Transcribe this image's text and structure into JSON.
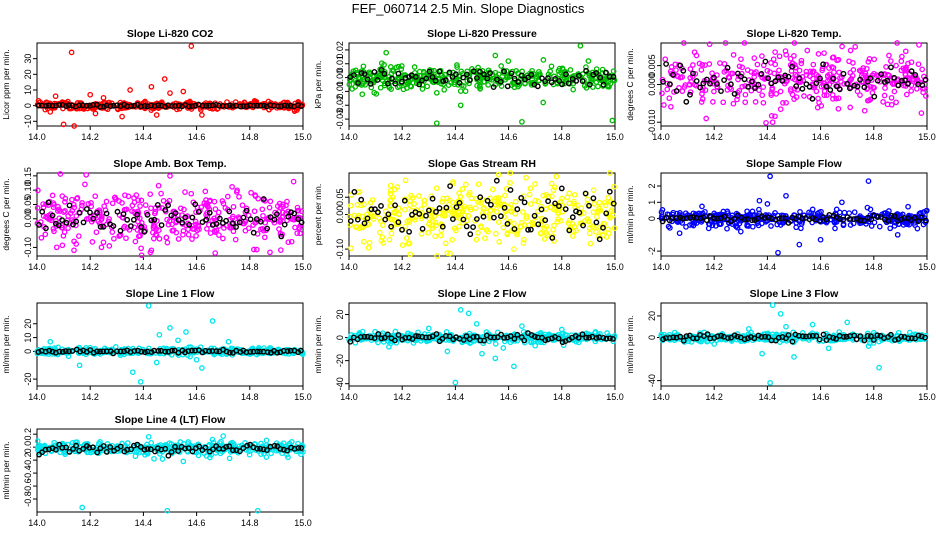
{
  "title": "FEF_060714  2.5 Min. Slope Diagnostics",
  "chart_data": [
    {
      "type": "scatter",
      "title": "Slope Li-820 CO2",
      "ylabel": "Licor ppm per min.",
      "xlim": [
        14.0,
        15.0
      ],
      "ylim": [
        -13,
        40
      ],
      "xticks": [
        "14.0",
        "14.2",
        "14.4",
        "14.6",
        "14.8",
        "15.0"
      ],
      "yticks": [
        {
          "v": -10,
          "label": "-10"
        },
        {
          "v": 0,
          "label": "0"
        },
        {
          "v": 10,
          "label": "10"
        },
        {
          "v": 20,
          "label": "20"
        },
        {
          "v": 30,
          "label": "30"
        }
      ],
      "colors": {
        "raw": "#ff0000",
        "mean": "#000000"
      },
      "series_params": {
        "center": 0,
        "spread": 1.2,
        "mean_spread": 0.3
      },
      "outliers": [
        [
          14.13,
          34
        ],
        [
          14.58,
          38
        ],
        [
          14.2,
          7
        ],
        [
          14.35,
          10
        ],
        [
          14.5,
          8
        ],
        [
          14.1,
          -12
        ],
        [
          14.14,
          -13
        ],
        [
          14.48,
          17
        ],
        [
          14.43,
          12
        ],
        [
          14.55,
          9
        ],
        [
          14.07,
          6
        ],
        [
          14.22,
          -5
        ],
        [
          14.32,
          -7
        ],
        [
          14.05,
          -4
        ],
        [
          14.62,
          -6
        ],
        [
          14.25,
          5
        ],
        [
          14.45,
          -6
        ]
      ]
    },
    {
      "type": "scatter",
      "title": "Slope Li-820 Pressure",
      "ylabel": "kPa per min.",
      "xlim": [
        14.0,
        15.0
      ],
      "ylim": [
        -0.035,
        0.025
      ],
      "xticks": [
        "14.0",
        "14.2",
        "14.4",
        "14.6",
        "14.8",
        "15.0"
      ],
      "yticks": [
        {
          "v": -0.03,
          "label": "-0.03"
        },
        {
          "v": -0.02,
          "label": "-0.02"
        },
        {
          "v": -0.01,
          "label": "-0.01"
        },
        {
          "v": 0.0,
          "label": "0.00"
        },
        {
          "v": 0.01,
          "label": "0.01"
        },
        {
          "v": 0.02,
          "label": "0.02"
        }
      ],
      "colors": {
        "raw": "#00bb00",
        "mean": "#000000"
      },
      "series_params": {
        "center": 0,
        "spread": 0.004,
        "mean_spread": 0.003
      },
      "outliers": [
        [
          14.33,
          -0.033
        ],
        [
          14.65,
          -0.032
        ],
        [
          14.99,
          -0.031
        ],
        [
          14.87,
          0.023
        ],
        [
          14.14,
          0.018
        ],
        [
          14.42,
          -0.02
        ],
        [
          14.73,
          -0.018
        ],
        [
          14.05,
          -0.012
        ],
        [
          14.9,
          0.012
        ],
        [
          14.55,
          0.016
        ]
      ]
    },
    {
      "type": "scatter",
      "title": "Slope Li-820 Temp.",
      "ylabel": "degrees C per min.",
      "xlim": [
        14.0,
        15.0
      ],
      "ylim": [
        -0.011,
        0.011
      ],
      "xticks": [
        "14.0",
        "14.2",
        "14.4",
        "14.6",
        "14.8",
        "15.0"
      ],
      "yticks": [
        {
          "v": -0.01,
          "label": "-0.010"
        },
        {
          "v": 0.0,
          "label": "0.000"
        },
        {
          "v": 0.005,
          "label": "0.005"
        }
      ],
      "colors": {
        "raw": "#ff00ff",
        "mean": "#000000"
      },
      "series_params": {
        "center": 0.001,
        "spread": 0.0035,
        "mean_spread": 0.002
      },
      "outliers": [
        [
          14.97,
          0.0105
        ],
        [
          14.17,
          -0.009
        ],
        [
          14.42,
          -0.01
        ],
        [
          14.73,
          0.01
        ],
        [
          14.55,
          0.009
        ]
      ]
    },
    {
      "type": "scatter",
      "title": "Slope Amb. Box Temp.",
      "ylabel": "degrees C per min.",
      "xlim": [
        14.0,
        15.0
      ],
      "ylim": [
        -0.13,
        0.16
      ],
      "xticks": [
        "14.0",
        "14.2",
        "14.4",
        "14.6",
        "14.8",
        "15.0"
      ],
      "yticks": [
        {
          "v": -0.1,
          "label": "-0.10"
        },
        {
          "v": 0.0,
          "label": "0.00"
        },
        {
          "v": 0.05,
          "label": "0.05"
        },
        {
          "v": 0.1,
          "label": "0.10"
        },
        {
          "v": 0.15,
          "label": "0.15"
        }
      ],
      "colors": {
        "raw": "#ff00ff",
        "mean": "#000000"
      },
      "series_params": {
        "center": 0.0,
        "spread": 0.045,
        "mean_spread": 0.025
      },
      "outliers": [
        [
          14.5,
          0.15
        ],
        [
          14.43,
          -0.11
        ],
        [
          14.67,
          -0.12
        ],
        [
          14.18,
          0.12
        ]
      ]
    },
    {
      "type": "scatter",
      "title": "Slope Gas Stream RH",
      "ylabel": "percent per min.",
      "xlim": [
        14.0,
        15.0
      ],
      "ylim": [
        -0.12,
        0.12
      ],
      "xticks": [
        "14.0",
        "14.2",
        "14.4",
        "14.6",
        "14.8",
        "15.0"
      ],
      "yticks": [
        {
          "v": -0.1,
          "label": "-0.10"
        },
        {
          "v": 0.0,
          "label": "0.00"
        },
        {
          "v": 0.05,
          "label": "0.05"
        }
      ],
      "colors": {
        "raw": "#ffff00",
        "mean": "#000000"
      },
      "series_params": {
        "center": 0.0,
        "spread": 0.045,
        "mean_spread": 0.035
      },
      "outliers": [
        [
          14.23,
          -0.115
        ],
        [
          14.78,
          0.11
        ],
        [
          14.62,
          -0.1
        ]
      ]
    },
    {
      "type": "scatter",
      "title": "Slope Sample Flow",
      "ylabel": "ml/min per min.",
      "xlim": [
        14.0,
        15.0
      ],
      "ylim": [
        -2.3,
        2.8
      ],
      "xticks": [
        "14.0",
        "14.2",
        "14.4",
        "14.6",
        "14.8",
        "15.0"
      ],
      "yticks": [
        {
          "v": -2,
          "label": "-2"
        },
        {
          "v": 0,
          "label": "0"
        },
        {
          "v": 1,
          "label": "1"
        },
        {
          "v": 2,
          "label": "2"
        }
      ],
      "colors": {
        "raw": "#0000ff",
        "mean": "#000000"
      },
      "series_params": {
        "center": 0.0,
        "spread": 0.25,
        "mean_spread": 0.1
      },
      "outliers": [
        [
          14.41,
          2.6
        ],
        [
          14.44,
          -2.1
        ],
        [
          14.78,
          2.3
        ],
        [
          14.37,
          1.1
        ],
        [
          14.6,
          -1.3
        ],
        [
          14.47,
          1.4
        ],
        [
          14.07,
          -0.9
        ],
        [
          14.52,
          -1.6
        ],
        [
          14.68,
          1.0
        ],
        [
          14.3,
          -0.8
        ],
        [
          14.89,
          -1.0
        ],
        [
          14.4,
          0.9
        ]
      ]
    },
    {
      "type": "scatter",
      "title": "Slope Line 1 Flow",
      "ylabel": "ml/min per min.",
      "xlim": [
        14.0,
        15.0
      ],
      "ylim": [
        -25,
        35
      ],
      "xticks": [
        "14.0",
        "14.2",
        "14.4",
        "14.6",
        "14.8",
        "15.0"
      ],
      "yticks": [
        {
          "v": -20,
          "label": "-20"
        },
        {
          "v": 0,
          "label": "0"
        },
        {
          "v": 10,
          "label": "10"
        },
        {
          "v": 20,
          "label": "20"
        }
      ],
      "colors": {
        "raw": "#00e5ee",
        "mean": "#000000"
      },
      "series_params": {
        "center": 0,
        "spread": 1.2,
        "mean_spread": 0.5
      },
      "outliers": [
        [
          14.42,
          33
        ],
        [
          14.39,
          -22
        ],
        [
          14.66,
          22
        ],
        [
          14.46,
          12
        ],
        [
          14.36,
          -15
        ],
        [
          14.62,
          -12
        ],
        [
          14.16,
          -10
        ],
        [
          14.53,
          8
        ],
        [
          14.05,
          7
        ],
        [
          14.72,
          7
        ],
        [
          14.45,
          -8
        ],
        [
          14.5,
          17
        ],
        [
          14.56,
          14
        ],
        [
          14.6,
          -6
        ]
      ]
    },
    {
      "type": "scatter",
      "title": "Slope Line 2 Flow",
      "ylabel": "ml/min per min.",
      "xlim": [
        14.0,
        15.0
      ],
      "ylim": [
        -42,
        30
      ],
      "xticks": [
        "14.0",
        "14.2",
        "14.4",
        "14.6",
        "14.8",
        "15.0"
      ],
      "yticks": [
        {
          "v": -40,
          "label": "-40"
        },
        {
          "v": -20,
          "label": "-20"
        },
        {
          "v": 0,
          "label": "0"
        },
        {
          "v": 20,
          "label": "20"
        }
      ],
      "colors": {
        "raw": "#00e5ee",
        "mean": "#000000"
      },
      "series_params": {
        "center": 0,
        "spread": 2.0,
        "mean_spread": 1.5
      },
      "outliers": [
        [
          14.4,
          -39
        ],
        [
          14.42,
          24
        ],
        [
          14.45,
          21
        ],
        [
          14.48,
          12
        ],
        [
          14.37,
          -12
        ],
        [
          14.55,
          -18
        ],
        [
          14.62,
          -25
        ],
        [
          14.5,
          -14
        ],
        [
          14.65,
          10
        ],
        [
          14.3,
          8
        ],
        [
          14.58,
          -9
        ],
        [
          14.7,
          -7
        ],
        [
          14.15,
          -8
        ],
        [
          14.8,
          7
        ]
      ]
    },
    {
      "type": "scatter",
      "title": "Slope Line 3 Flow",
      "ylabel": "ml/min per min.",
      "xlim": [
        14.0,
        15.0
      ],
      "ylim": [
        -45,
        32
      ],
      "xticks": [
        "14.0",
        "14.2",
        "14.4",
        "14.6",
        "14.8",
        "15.0"
      ],
      "yticks": [
        {
          "v": -40,
          "label": "-40"
        },
        {
          "v": 0,
          "label": "0"
        },
        {
          "v": 20,
          "label": "20"
        }
      ],
      "colors": {
        "raw": "#00e5ee",
        "mean": "#000000"
      },
      "series_params": {
        "center": 0,
        "spread": 2.0,
        "mean_spread": 1.5
      },
      "outliers": [
        [
          14.41,
          -42
        ],
        [
          14.42,
          30
        ],
        [
          14.82,
          -28
        ],
        [
          14.45,
          22
        ],
        [
          14.38,
          -15
        ],
        [
          14.5,
          -18
        ],
        [
          14.57,
          12
        ],
        [
          14.47,
          10
        ],
        [
          14.63,
          -10
        ],
        [
          14.7,
          14
        ],
        [
          14.33,
          8
        ],
        [
          14.78,
          -8
        ],
        [
          14.2,
          -6
        ]
      ]
    },
    {
      "type": "scatter",
      "title": "Slope Line 4 (LT) Flow",
      "ylabel": "ml/min per min.",
      "xlim": [
        14.0,
        15.0
      ],
      "ylim": [
        -1.0,
        0.28
      ],
      "xticks": [
        "14.0",
        "14.2",
        "14.4",
        "14.6",
        "14.8",
        "15.0"
      ],
      "yticks": [
        {
          "v": -0.8,
          "label": "-0.8"
        },
        {
          "v": -0.6,
          "label": "-0.6"
        },
        {
          "v": -0.4,
          "label": "-0.4"
        },
        {
          "v": -0.2,
          "label": "-0.2"
        },
        {
          "v": 0.0,
          "label": "0.0"
        },
        {
          "v": 0.2,
          "label": "0.2"
        }
      ],
      "colors": {
        "raw": "#00e5ee",
        "mean": "#000000"
      },
      "series_params": {
        "center": -0.02,
        "spread": 0.045,
        "mean_spread": 0.035
      },
      "outliers": [
        [
          14.17,
          -0.93
        ],
        [
          14.49,
          -0.98
        ],
        [
          14.83,
          -0.98
        ],
        [
          14.44,
          -0.18
        ],
        [
          14.55,
          -0.22
        ],
        [
          14.7,
          0.17
        ],
        [
          14.42,
          0.16
        ],
        [
          14.37,
          -0.14
        ],
        [
          14.65,
          -0.16
        ]
      ]
    }
  ]
}
